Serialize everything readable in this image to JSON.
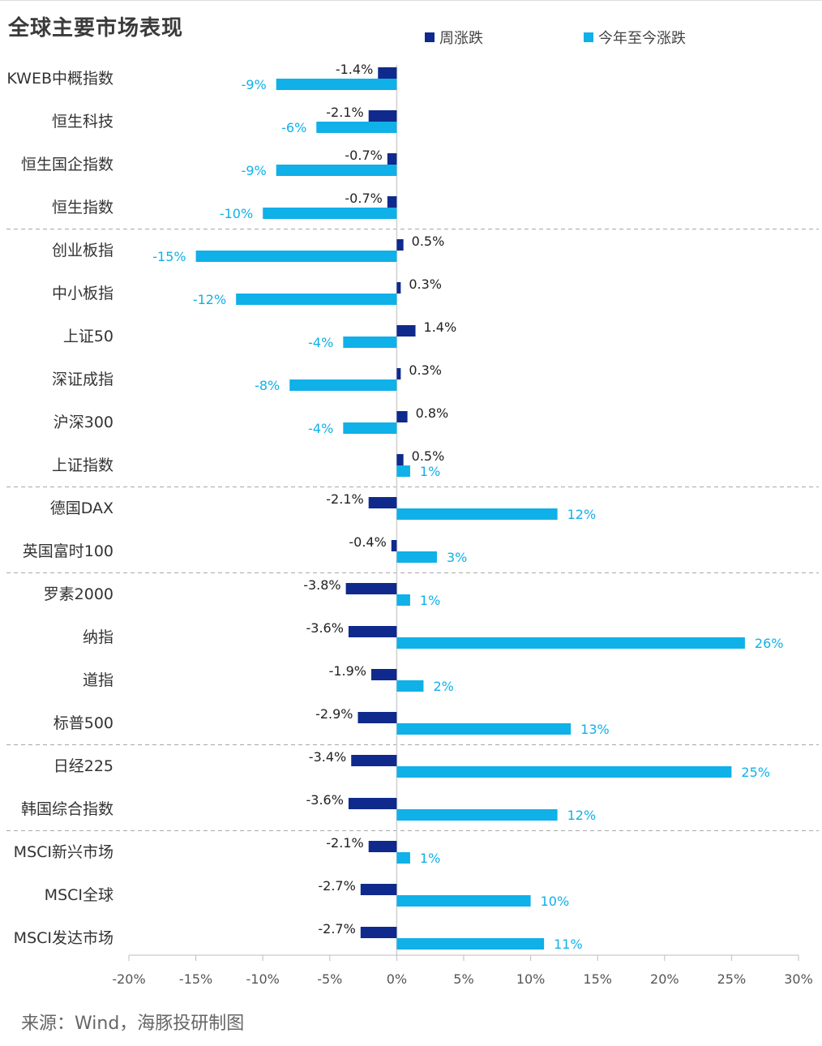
{
  "chart_data": {
    "type": "bar",
    "orientation": "horizontal",
    "title": "全球主要市场表现",
    "categories": [
      "KWEB中概指数",
      "恒生科技",
      "恒生国企指数",
      "恒生指数",
      "创业板指",
      "中小板指",
      "上证50",
      "深证成指",
      "沪深300",
      "上证指数",
      "德国DAX",
      "英国富时100",
      "罗素2000",
      "纳指",
      "道指",
      "标普500",
      "日经225",
      "韩国综合指数",
      "MSCI新兴市场",
      "MSCI全球",
      "MSCI发达市场"
    ],
    "series": [
      {
        "name": "周涨跌",
        "color": "#0f2a8c",
        "values": [
          -1.4,
          -2.1,
          -0.7,
          -0.7,
          0.5,
          0.3,
          1.4,
          0.3,
          0.8,
          0.5,
          -2.1,
          -0.4,
          -3.8,
          -3.6,
          -1.9,
          -2.9,
          -3.4,
          -3.6,
          -2.1,
          -2.7,
          -2.7
        ],
        "labels": [
          "-1.4%",
          "-2.1%",
          "-0.7%",
          "-0.7%",
          "0.5%",
          "0.3%",
          "1.4%",
          "0.3%",
          "0.8%",
          "0.5%",
          "-2.1%",
          "-0.4%",
          "-3.8%",
          "-3.6%",
          "-1.9%",
          "-2.9%",
          "-3.4%",
          "-3.6%",
          "-2.1%",
          "-2.7%",
          "-2.7%"
        ]
      },
      {
        "name": "今年至今涨跌",
        "color": "#10b0e8",
        "values": [
          -9,
          -6,
          -9,
          -10,
          -15,
          -12,
          -4,
          -8,
          -4,
          1,
          12,
          3,
          1,
          26,
          2,
          13,
          25,
          12,
          1,
          10,
          11
        ],
        "labels": [
          "-9%",
          "-6%",
          "-9%",
          "-10%",
          "-15%",
          "-12%",
          "-4%",
          "-8%",
          "-4%",
          "1%",
          "12%",
          "3%",
          "1%",
          "26%",
          "2%",
          "13%",
          "25%",
          "12%",
          "1%",
          "10%",
          "11%"
        ]
      }
    ],
    "xlim": [
      -20,
      30
    ],
    "xticks": [
      -20,
      -15,
      -10,
      -5,
      0,
      5,
      10,
      15,
      20,
      25,
      30
    ],
    "xtick_labels": [
      "-20%",
      "-15%",
      "-10%",
      "-5%",
      "0%",
      "5%",
      "10%",
      "15%",
      "20%",
      "25%",
      "30%"
    ],
    "group_separators_after": [
      3,
      9,
      11,
      15,
      17
    ],
    "legend_position": "top"
  },
  "source_text": "来源：Wind，海豚投研制图"
}
